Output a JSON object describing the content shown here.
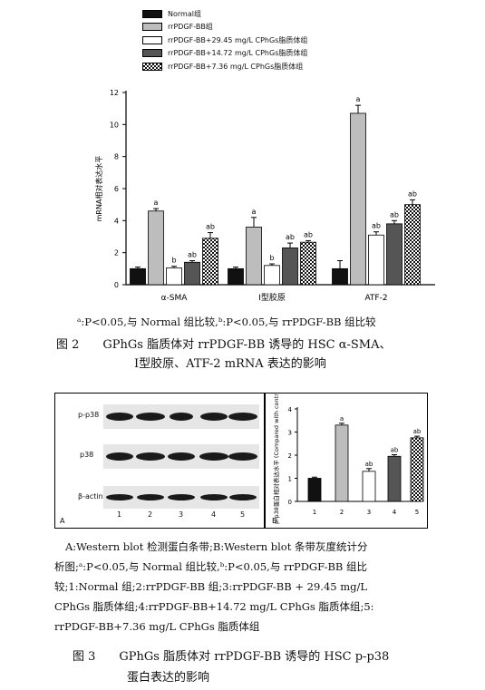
{
  "fig2": {
    "legend": [
      {
        "label": "Normal组",
        "swatch": "black"
      },
      {
        "label": "rrPDGF-BB组",
        "swatch": "gray"
      },
      {
        "label": "rrPDGF-BB+29.45 mg/L CPhGs脂质体组",
        "swatch": "white"
      },
      {
        "label": "rrPDGF-BB+14.72 mg/L CPhGs脂质体组",
        "swatch": "dark"
      },
      {
        "label": "rrPDGF-BB+7.36 mg/L CPhGs脂质体组",
        "swatch": "check"
      }
    ],
    "note": "ᵃ:P<0.05,与 Normal 组比较,ᵇ:P<0.05,与 rrPDGF-BB 组比较",
    "caption_line1": "图 2　　GPhGs 脂质体对 rrPDGF-BB 诱导的 HSC α-SMA、",
    "caption_line2": "Ⅰ型胶原、ATF-2 mRNA 表达的影响"
  },
  "fig3": {
    "blot_rows": [
      "p-p38",
      "p38",
      "β-actin"
    ],
    "lanes": [
      "1",
      "2",
      "3",
      "4",
      "5"
    ],
    "panel_a": "A",
    "panel_b": "B",
    "note_lines": [
      "A:Western blot 检测蛋白条带;B:Western blot 条带灰度统计分",
      "析图;ᵃ:P<0.05,与 Normal 组比较,ᵇ:P<0.05,与 rrPDGF-BB 组比",
      "较;1:Normal 组;2:rrPDGF-BB 组;3:rrPDGF-BB + 29.45 mg/L",
      "CPhGs 脂质体组;4:rrPDGF-BB+14.72 mg/L CPhGs 脂质体组;5:",
      "rrPDGF-BB+7.36 mg/L CPhGs 脂质体组"
    ],
    "caption_line1": "图 3　　GPhGs 脂质体对 rrPDGF-BB 诱导的 HSC p-p38",
    "caption_line2": "蛋白表达的影响"
  },
  "colors": {
    "black": "#111111",
    "gray": "#bdbdbd",
    "white": "#ffffff",
    "dark": "#555555",
    "check": "pattern"
  },
  "chart_data": [
    {
      "type": "bar",
      "ylabel": "mRNA相对表达水平",
      "ylim": [
        0,
        12
      ],
      "yticks": [
        0,
        2,
        4,
        6,
        8,
        10,
        12
      ],
      "categories": [
        "α-SMA",
        "Ⅰ型胶原",
        "ATF-2"
      ],
      "series": [
        {
          "name": "Normal组",
          "values": [
            1.0,
            1.0,
            1.0
          ],
          "errors": [
            0.1,
            0.1,
            0.5
          ],
          "labels": [
            "",
            "",
            ""
          ]
        },
        {
          "name": "rrPDGF-BB组",
          "values": [
            4.6,
            3.6,
            10.7
          ],
          "errors": [
            0.15,
            0.6,
            0.5
          ],
          "labels": [
            "a",
            "a",
            "a"
          ]
        },
        {
          "name": "rrPDGF-BB+29.45 mg/L CPhGs脂质体组",
          "values": [
            1.05,
            1.2,
            3.1
          ],
          "errors": [
            0.1,
            0.1,
            0.2
          ],
          "labels": [
            "b",
            "b",
            "ab"
          ]
        },
        {
          "name": "rrPDGF-BB+14.72 mg/L CPhGs脂质体组",
          "values": [
            1.4,
            2.3,
            3.8
          ],
          "errors": [
            0.1,
            0.3,
            0.2
          ],
          "labels": [
            "ab",
            "ab",
            "ab"
          ]
        },
        {
          "name": "rrPDGF-BB+7.36 mg/L CPhGs脂质体组",
          "values": [
            2.9,
            2.65,
            5.0
          ],
          "errors": [
            0.35,
            0.1,
            0.3
          ],
          "labels": [
            "ab",
            "ab",
            "ab"
          ]
        }
      ]
    },
    {
      "type": "bar",
      "ylabel": "p-p38蛋白相对表达水平 (Compared with control)",
      "ylim": [
        0,
        4
      ],
      "yticks": [
        0,
        1,
        2,
        3,
        4
      ],
      "categories": [
        "1",
        "2",
        "3",
        "4",
        "5"
      ],
      "values": [
        1.0,
        3.3,
        1.3,
        1.95,
        2.75
      ],
      "errors": [
        0.05,
        0.08,
        0.12,
        0.07,
        0.07
      ],
      "labels": [
        "",
        "a",
        "ab",
        "ab",
        "ab"
      ]
    }
  ]
}
